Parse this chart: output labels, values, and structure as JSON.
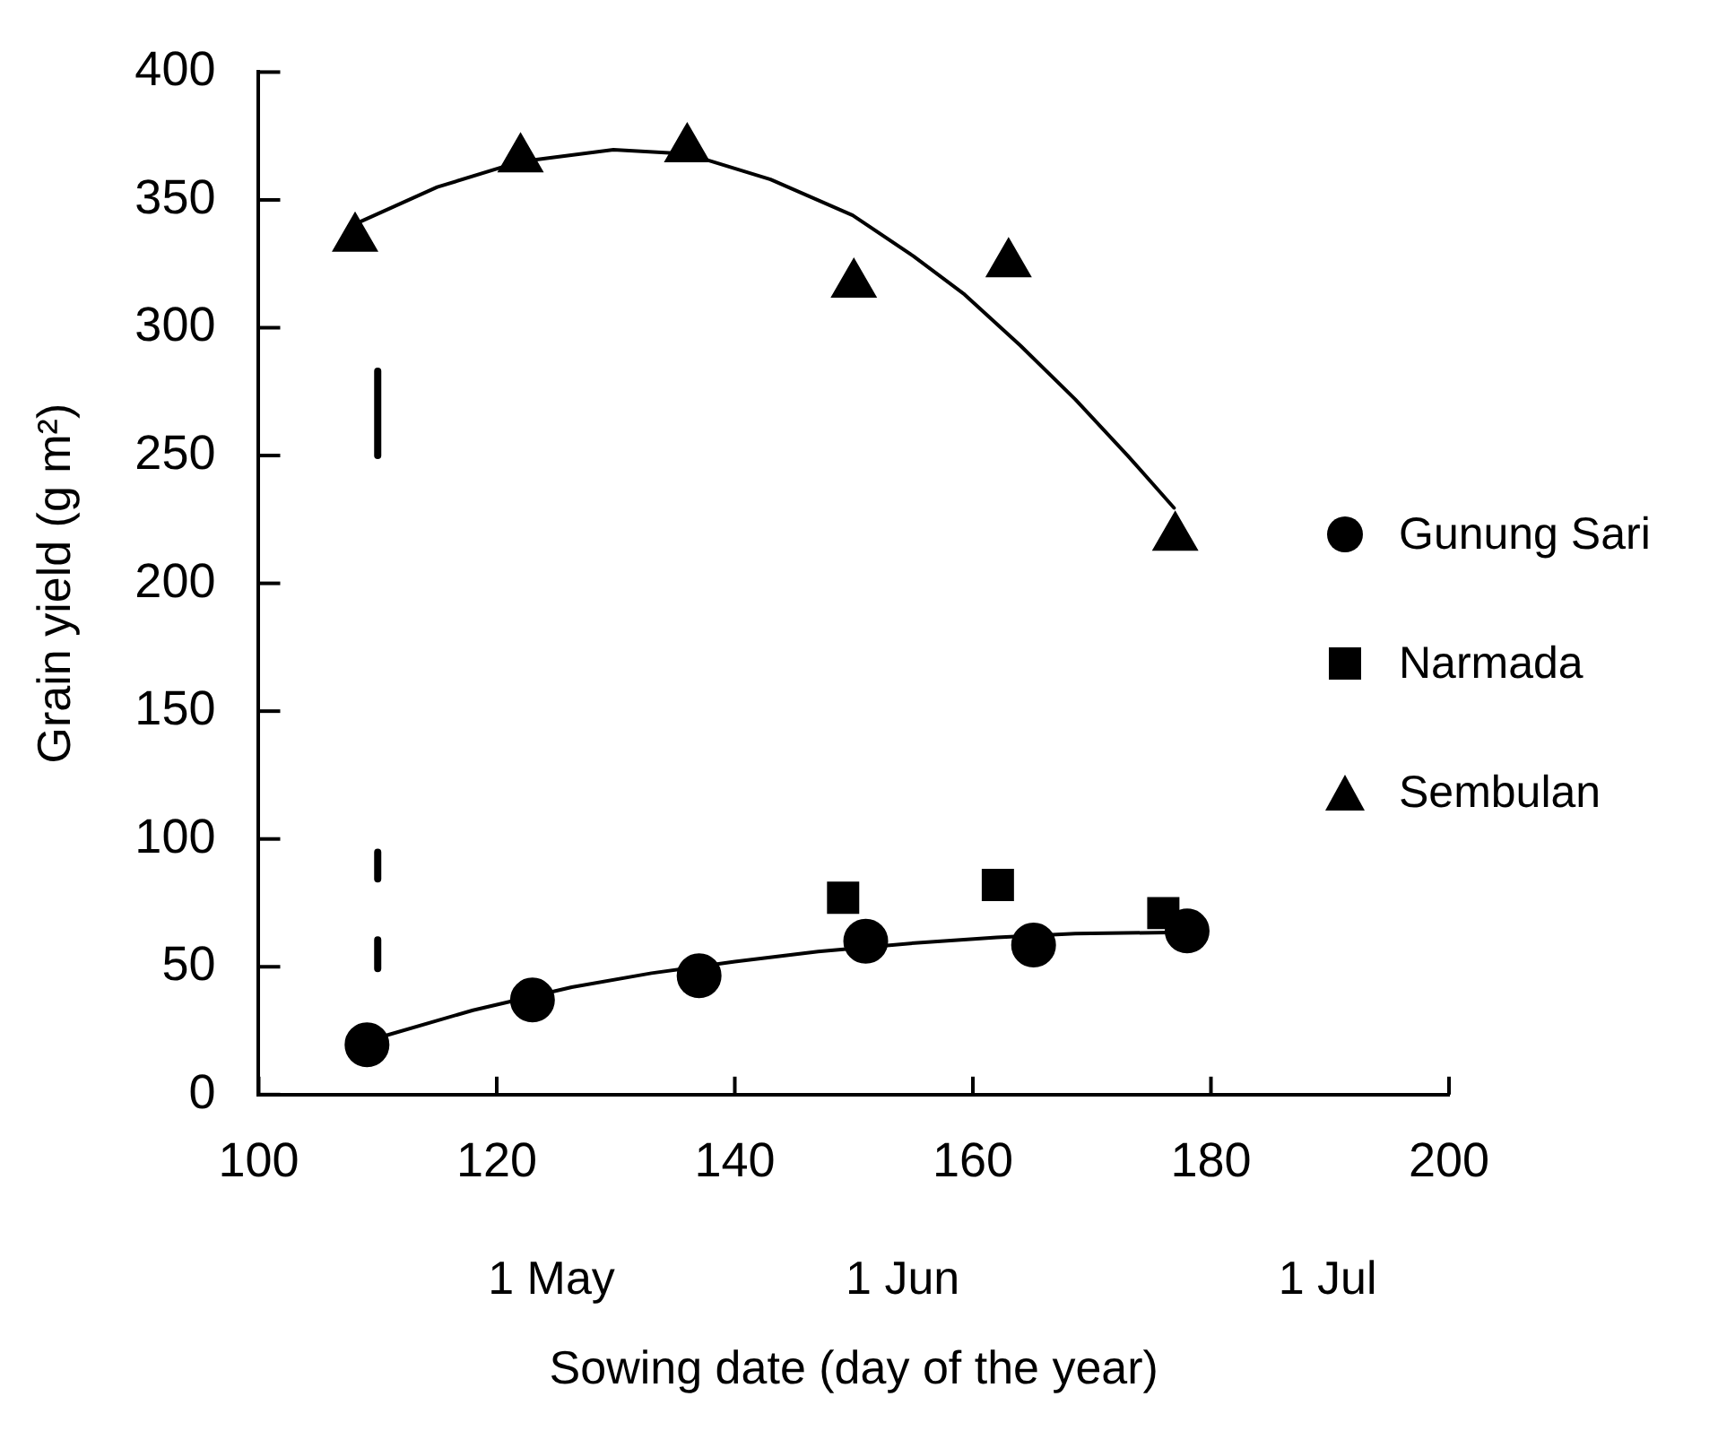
{
  "chart_data": {
    "type": "scatter",
    "xlabel": "Sowing date (day of the year)",
    "ylabel": "Grain yield (g m²)",
    "xlim": [
      100,
      200
    ],
    "xticks": [
      100,
      120,
      140,
      160,
      180,
      200
    ],
    "ylim": [
      0,
      400
    ],
    "yticks": [
      0,
      50,
      100,
      150,
      200,
      250,
      300,
      350,
      400
    ],
    "annotations": [
      "1 May",
      "1 Jun",
      "1 Jul"
    ],
    "legend": "right",
    "series": [
      {
        "name": "Gunung Sari",
        "marker": "circle",
        "color": "#000000",
        "x": [
          109.1,
          123,
          137,
          151,
          165.1,
          178
        ],
        "values": [
          19.5,
          37,
          46.5,
          60,
          58.5,
          64
        ]
      },
      {
        "name": "Narmada",
        "marker": "square",
        "color": "#000000",
        "x": [
          149.1,
          162.1,
          176
        ],
        "values": [
          77,
          82,
          71
        ]
      },
      {
        "name": "Sembulan",
        "marker": "triangle",
        "color": "#000000",
        "x": [
          108.1,
          122,
          136,
          150,
          163,
          177
        ],
        "values": [
          335,
          366,
          370,
          317,
          325,
          218
        ]
      },
      {
        "type": "line",
        "marker": "none",
        "color": "#000000",
        "x": [
          108.6,
          115,
          122,
          129.8,
          136,
          143,
          149.9,
          155,
          159.3,
          164,
          168.6,
          173,
          176.9
        ],
        "values": [
          341.6,
          355,
          365,
          369.6,
          368,
          358,
          344,
          328,
          313,
          293,
          272,
          250,
          229.5
        ]
      },
      {
        "type": "line",
        "marker": "none",
        "color": "#000000",
        "x": [
          110.6,
          118,
          126.3,
          133,
          140,
          147,
          155.1,
          162,
          168.6,
          178
        ],
        "values": [
          23,
          33,
          42,
          47.5,
          52,
          56,
          59.3,
          61.5,
          63,
          63.5
        ]
      },
      {
        "type": "line",
        "marker": "none",
        "color": "#000000",
        "x": [
          110,
          110
        ],
        "values": [
          250,
          283
        ],
        "line_style": "solid"
      },
      {
        "type": "line",
        "marker": "none",
        "color": "#000000",
        "x": [
          110,
          110
        ],
        "values": [
          49.3,
          94.8
        ],
        "line_style": "dashed"
      }
    ]
  }
}
